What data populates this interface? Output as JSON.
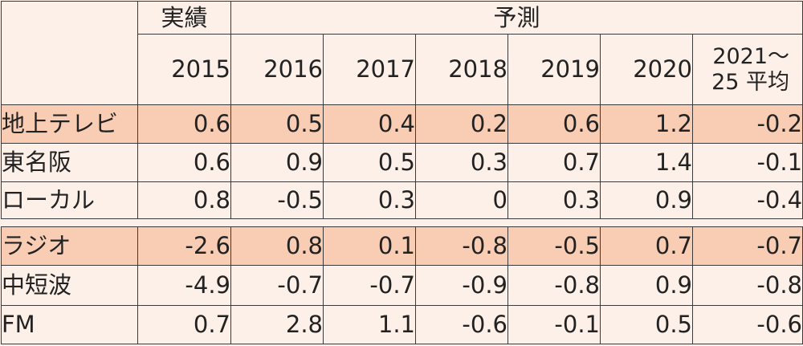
{
  "header": {
    "actual_label": "実績",
    "forecast_label": "予測",
    "years": [
      "2015",
      "2016",
      "2017",
      "2018",
      "2019",
      "2020"
    ],
    "avg_line1": "2021〜",
    "avg_line2": "25 平均"
  },
  "section1": [
    {
      "label": "地上テレビ",
      "values": [
        "0.6",
        "0.5",
        "0.4",
        "0.2",
        "0.6",
        "1.2",
        "-0.2"
      ],
      "highlight": true
    },
    {
      "label": "東名阪",
      "values": [
        "0.6",
        "0.9",
        "0.5",
        "0.3",
        "0.7",
        "1.4",
        "-0.1"
      ],
      "highlight": false
    },
    {
      "label": "ローカル",
      "values": [
        "0.8",
        "-0.5",
        "0.3",
        "0",
        "0.3",
        "0.9",
        "-0.4"
      ],
      "highlight": false
    }
  ],
  "section2": [
    {
      "label": "ラジオ",
      "values": [
        "-2.6",
        "0.8",
        "0.1",
        "-0.8",
        "-0.5",
        "0.7",
        "-0.7"
      ],
      "highlight": true
    },
    {
      "label": "中短波",
      "values": [
        "-4.9",
        "-0.7",
        "-0.7",
        "-0.9",
        "-0.8",
        "0.9",
        "-0.8"
      ],
      "highlight": false
    },
    {
      "label": "FM",
      "values": [
        "0.7",
        "2.8",
        "1.1",
        "-0.6",
        "-0.1",
        "0.5",
        "-0.6"
      ],
      "highlight": false
    }
  ],
  "colors": {
    "background": "#fdf0e8",
    "highlight_row": "#f8cdb4",
    "border": "#3a3a3a"
  }
}
